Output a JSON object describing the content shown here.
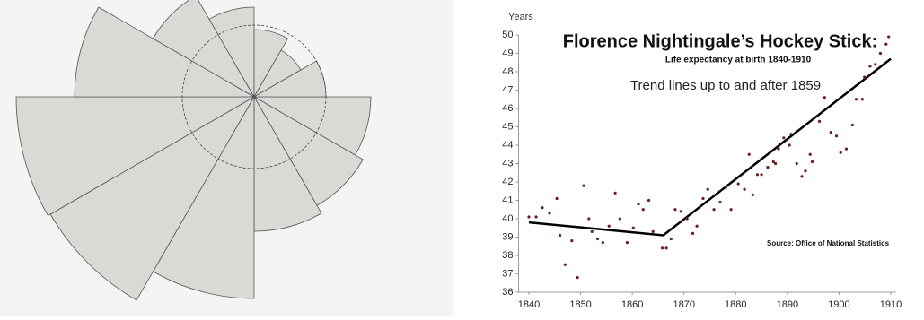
{
  "chart_data": {
    "type": "scatter",
    "title": "Florence Nightingale’s Hockey Stick:",
    "subtitle": "Life expectancy at birth 1840-1910",
    "annotation": "Trend lines up to and after 1859",
    "source": "Source: Office of National Statistics",
    "y_label": "Years",
    "color": "#6b1f1f",
    "x": [
      1840,
      1841.4,
      1842.6,
      1844,
      1845.4,
      1846,
      1847,
      1848.3,
      1849.4,
      1850.6,
      1851.6,
      1852.2,
      1853.3,
      1854.3,
      1855.5,
      1856.7,
      1857.6,
      1859,
      1860.2,
      1861.2,
      1862.1,
      1863.2,
      1864,
      1865.8,
      1866.6,
      1867.5,
      1868.3,
      1869.4,
      1870.6,
      1871.7,
      1872.5,
      1873.7,
      1874.6,
      1875.8,
      1877,
      1878.1,
      1879.1,
      1880.5,
      1881.7,
      1882.6,
      1883.3,
      1884.2,
      1885,
      1886.2,
      1887.3,
      1887.7,
      1888.3,
      1889.3,
      1890.4,
      1890.7,
      1891.8,
      1892.8,
      1893.5,
      1894.4,
      1894.8,
      1896.2,
      1897.2,
      1898.4,
      1899.5,
      1900.3,
      1901.4,
      1902.6,
      1903.3,
      1904.5,
      1904.9,
      1906,
      1907,
      1908,
      1909.1,
      1909.6
    ],
    "values": [
      40.1,
      40.1,
      40.6,
      40.3,
      41.1,
      39.1,
      37.5,
      38.8,
      36.8,
      41.8,
      40.0,
      39.3,
      38.9,
      38.7,
      39.6,
      41.4,
      40.0,
      38.7,
      39.5,
      40.8,
      40.5,
      41.0,
      39.3,
      38.4,
      38.4,
      38.9,
      40.5,
      40.4,
      40.0,
      39.2,
      39.6,
      41.1,
      41.6,
      40.5,
      40.9,
      41.7,
      40.5,
      41.9,
      41.6,
      43.5,
      41.3,
      42.4,
      42.4,
      42.8,
      43.1,
      43.0,
      43.8,
      44.4,
      44.0,
      44.6,
      43.0,
      42.3,
      42.6,
      43.5,
      43.1,
      45.3,
      46.6,
      44.7,
      44.5,
      43.6,
      43.8,
      45.1,
      46.5,
      46.5,
      47.7,
      48.3,
      48.4,
      49.0,
      49.5,
      49.9
    ],
    "trend": {
      "x": [
        1840,
        1866,
        1910
      ],
      "values": [
        39.8,
        39.1,
        48.7
      ],
      "color": "#000000"
    },
    "xlim": [
      1838,
      1911
    ],
    "ylim": [
      36,
      50
    ],
    "xticks": [
      1840,
      1850,
      1860,
      1870,
      1880,
      1890,
      1900,
      1910
    ],
    "yticks": [
      36,
      37,
      38,
      39,
      40,
      41,
      42,
      43,
      44,
      45,
      46,
      47,
      48,
      49,
      50
    ],
    "grid": false
  }
}
